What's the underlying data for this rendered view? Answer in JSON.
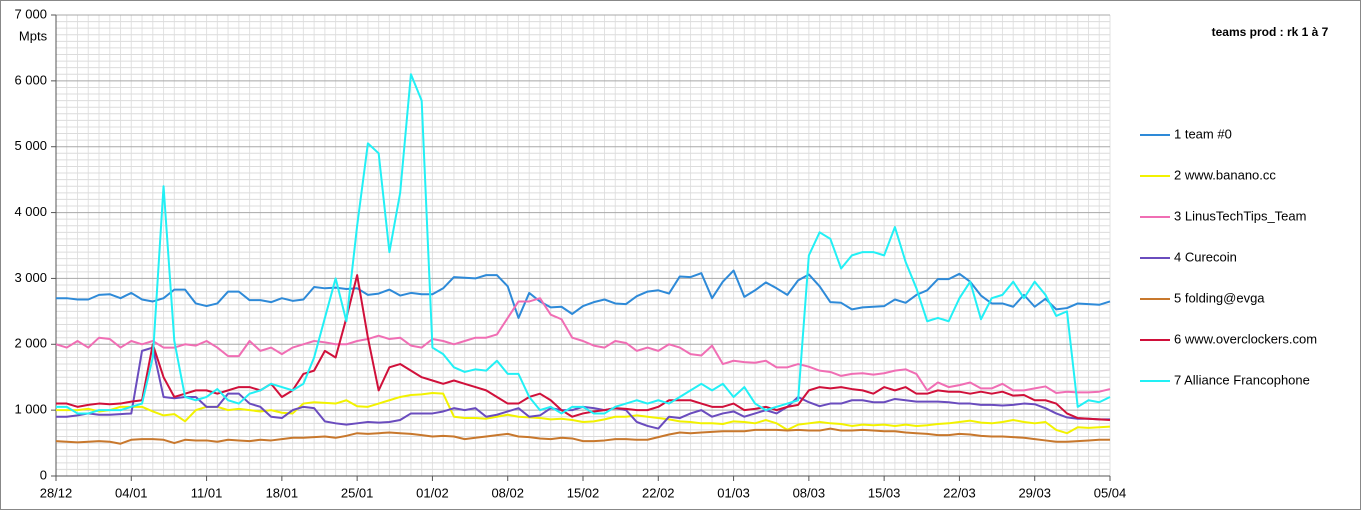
{
  "chart_data": {
    "type": "line",
    "title": "teams prod :  rk 1 à 7",
    "y_label": "Mpts",
    "grid": true,
    "legend": "right",
    "ylim": [
      0,
      7000
    ],
    "yticks": [
      0,
      {
        "value": 1000,
        "label": "1 000"
      },
      {
        "value": 2000,
        "label": "2 000"
      },
      {
        "value": 3000,
        "label": "3 000"
      },
      {
        "value": 4000,
        "label": "4 000"
      },
      {
        "value": 5000,
        "label": "5 000"
      },
      {
        "value": 6000,
        "label": "6 000"
      },
      {
        "value": 7000,
        "label": "7 000"
      }
    ],
    "categories": [
      "28/12",
      null,
      null,
      null,
      null,
      null,
      null,
      "04/01",
      null,
      null,
      null,
      null,
      null,
      null,
      "11/01",
      null,
      null,
      null,
      null,
      null,
      null,
      "18/01",
      null,
      null,
      null,
      null,
      null,
      null,
      "25/01",
      null,
      null,
      null,
      null,
      null,
      null,
      "01/02",
      null,
      null,
      null,
      null,
      null,
      null,
      "08/02",
      null,
      null,
      null,
      null,
      null,
      null,
      "15/02",
      null,
      null,
      null,
      null,
      null,
      null,
      "22/02",
      null,
      null,
      null,
      null,
      null,
      null,
      "01/03",
      null,
      null,
      null,
      null,
      null,
      null,
      "08/03",
      null,
      null,
      null,
      null,
      null,
      null,
      "15/03",
      null,
      null,
      null,
      null,
      null,
      null,
      "22/03",
      null,
      null,
      null,
      null,
      null,
      null,
      "29/03",
      null,
      null,
      null,
      null,
      null,
      null,
      "05/04"
    ],
    "series": [
      {
        "name": "1 team #0",
        "color": "#2e8ad8",
        "values": [
          2700,
          2700,
          2680,
          2680,
          2750,
          2760,
          2700,
          2780,
          2680,
          2650,
          2700,
          2830,
          2830,
          2620,
          2580,
          2620,
          2800,
          2800,
          2670,
          2670,
          2640,
          2700,
          2660,
          2680,
          2870,
          2850,
          2860,
          2840,
          2850,
          2750,
          2770,
          2830,
          2740,
          2780,
          2760,
          2760,
          2850,
          3020,
          3010,
          3000,
          3050,
          3050,
          2880,
          2400,
          2780,
          2650,
          2560,
          2570,
          2460,
          2580,
          2640,
          2680,
          2620,
          2610,
          2730,
          2800,
          2820,
          2770,
          3030,
          3020,
          3080,
          2700,
          2950,
          3120,
          2720,
          2820,
          2940,
          2850,
          2750,
          2970,
          3060,
          2880,
          2640,
          2630,
          2530,
          2560,
          2570,
          2580,
          2680,
          2630,
          2750,
          2820,
          2990,
          2990,
          3070,
          2950,
          2740,
          2620,
          2620,
          2570,
          2750,
          2570,
          2690,
          2530,
          2550,
          2620,
          2610,
          2600,
          2650
        ]
      },
      {
        "name": "2 www.banano.cc",
        "color": "#f2f200",
        "values": [
          1000,
          1000,
          1000,
          1020,
          980,
          1000,
          1050,
          1050,
          1050,
          980,
          920,
          940,
          830,
          1000,
          1050,
          1050,
          1000,
          1020,
          1000,
          980,
          1000,
          960,
          950,
          1100,
          1120,
          1110,
          1100,
          1150,
          1060,
          1050,
          1100,
          1150,
          1200,
          1230,
          1240,
          1260,
          1250,
          900,
          880,
          880,
          870,
          900,
          930,
          900,
          890,
          880,
          860,
          870,
          850,
          820,
          830,
          860,
          900,
          900,
          920,
          900,
          880,
          860,
          830,
          820,
          800,
          800,
          790,
          830,
          820,
          800,
          850,
          800,
          700,
          780,
          800,
          820,
          800,
          790,
          760,
          780,
          770,
          780,
          760,
          780,
          760,
          770,
          790,
          800,
          820,
          840,
          810,
          800,
          820,
          850,
          820,
          800,
          820,
          700,
          650,
          740,
          730,
          740,
          750
        ]
      },
      {
        "name": "3 LinusTechTips_Team",
        "color": "#f06eb4",
        "values": [
          2000,
          1950,
          2050,
          1950,
          2100,
          2080,
          1950,
          2050,
          2000,
          2050,
          1950,
          1950,
          2000,
          1980,
          2050,
          1950,
          1820,
          1820,
          2050,
          1900,
          1950,
          1850,
          1950,
          2000,
          2050,
          2030,
          2000,
          2000,
          2050,
          2080,
          2130,
          2080,
          2100,
          1980,
          1950,
          2080,
          2050,
          2000,
          2050,
          2100,
          2100,
          2150,
          2400,
          2650,
          2650,
          2700,
          2450,
          2380,
          2100,
          2050,
          1980,
          1950,
          2050,
          2020,
          1900,
          1950,
          1900,
          2000,
          1950,
          1850,
          1830,
          1980,
          1700,
          1750,
          1730,
          1720,
          1750,
          1650,
          1650,
          1700,
          1660,
          1600,
          1580,
          1520,
          1550,
          1560,
          1540,
          1560,
          1600,
          1620,
          1550,
          1300,
          1420,
          1350,
          1380,
          1420,
          1330,
          1330,
          1400,
          1300,
          1300,
          1330,
          1360,
          1260,
          1280,
          1270,
          1270,
          1280,
          1320
        ]
      },
      {
        "name": "4 Curecoin",
        "color": "#6a4cbe",
        "values": [
          900,
          900,
          920,
          950,
          930,
          930,
          940,
          950,
          1900,
          1950,
          1200,
          1180,
          1200,
          1200,
          1050,
          1050,
          1250,
          1250,
          1100,
          1050,
          900,
          880,
          1000,
          1050,
          1030,
          830,
          800,
          780,
          800,
          820,
          810,
          820,
          850,
          950,
          950,
          950,
          980,
          1030,
          1000,
          1030,
          900,
          930,
          980,
          1030,
          900,
          920,
          1030,
          1000,
          1000,
          1050,
          1030,
          1000,
          1030,
          1000,
          820,
          760,
          720,
          900,
          880,
          950,
          1000,
          900,
          950,
          980,
          900,
          950,
          1000,
          950,
          1050,
          1200,
          1120,
          1060,
          1100,
          1100,
          1150,
          1150,
          1120,
          1120,
          1170,
          1150,
          1130,
          1130,
          1130,
          1120,
          1100,
          1100,
          1080,
          1080,
          1070,
          1080,
          1100,
          1090,
          1030,
          950,
          890,
          870,
          870,
          860,
          860
        ]
      },
      {
        "name": "5 folding@evga",
        "color": "#c8782d",
        "values": [
          530,
          520,
          510,
          520,
          530,
          520,
          490,
          550,
          560,
          560,
          550,
          500,
          550,
          540,
          540,
          520,
          550,
          540,
          530,
          550,
          540,
          560,
          580,
          580,
          590,
          600,
          580,
          610,
          650,
          640,
          650,
          660,
          650,
          640,
          620,
          600,
          610,
          600,
          560,
          580,
          600,
          620,
          640,
          600,
          590,
          570,
          560,
          580,
          570,
          530,
          530,
          540,
          560,
          560,
          550,
          550,
          590,
          630,
          660,
          650,
          660,
          670,
          680,
          680,
          680,
          700,
          700,
          700,
          690,
          700,
          690,
          690,
          720,
          690,
          690,
          700,
          690,
          680,
          680,
          660,
          650,
          640,
          620,
          620,
          640,
          630,
          610,
          600,
          600,
          590,
          580,
          560,
          540,
          520,
          520,
          530,
          540,
          550,
          550
        ]
      },
      {
        "name": "6 www.overclockers.com",
        "color": "#d0103a",
        "values": [
          1100,
          1100,
          1050,
          1080,
          1100,
          1090,
          1100,
          1130,
          1150,
          2000,
          1500,
          1200,
          1250,
          1300,
          1300,
          1250,
          1300,
          1350,
          1350,
          1300,
          1400,
          1200,
          1300,
          1550,
          1600,
          1900,
          1800,
          2400,
          3050,
          2100,
          1300,
          1650,
          1700,
          1600,
          1500,
          1450,
          1400,
          1450,
          1400,
          1350,
          1300,
          1200,
          1100,
          1100,
          1200,
          1250,
          1150,
          1000,
          900,
          950,
          980,
          1000,
          1030,
          1020,
          1000,
          1000,
          1050,
          1150,
          1150,
          1150,
          1100,
          1050,
          1050,
          1100,
          1000,
          1020,
          1050,
          1000,
          1050,
          1080,
          1300,
          1350,
          1330,
          1350,
          1320,
          1300,
          1250,
          1350,
          1300,
          1350,
          1250,
          1250,
          1300,
          1280,
          1280,
          1250,
          1280,
          1250,
          1280,
          1220,
          1230,
          1150,
          1150,
          1100,
          950,
          880,
          870,
          860,
          850
        ]
      },
      {
        "name": "7 Alliance Francophone",
        "color": "#22f0f5",
        "values": [
          1050,
          1050,
          950,
          950,
          1000,
          1000,
          1000,
          1050,
          1100,
          1800,
          4400,
          2050,
          1200,
          1150,
          1200,
          1320,
          1150,
          1100,
          1250,
          1300,
          1400,
          1350,
          1300,
          1400,
          1800,
          2400,
          3000,
          2350,
          3800,
          5050,
          4900,
          3400,
          4300,
          6100,
          5700,
          1950,
          1850,
          1650,
          1580,
          1620,
          1600,
          1750,
          1550,
          1550,
          1200,
          1000,
          1050,
          950,
          1050,
          1050,
          950,
          950,
          1050,
          1100,
          1150,
          1100,
          1150,
          1100,
          1200,
          1300,
          1400,
          1300,
          1400,
          1200,
          1350,
          1100,
          1000,
          1050,
          1100,
          1150,
          3350,
          3700,
          3600,
          3150,
          3350,
          3400,
          3400,
          3350,
          3780,
          3250,
          2850,
          2350,
          2400,
          2350,
          2700,
          2950,
          2380,
          2700,
          2750,
          2950,
          2700,
          2950,
          2750,
          2430,
          2500,
          1050,
          1150,
          1120,
          1200
        ]
      }
    ]
  }
}
